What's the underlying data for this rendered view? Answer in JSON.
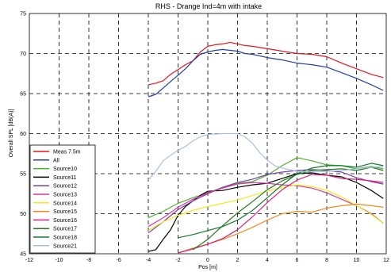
{
  "chart_data": {
    "type": "line",
    "title": "RHS - Drange Ind=4m with intake",
    "xlabel": "Pos [m]",
    "ylabel": "Overall SPL [dB(A)]",
    "xlim": [
      -12,
      12
    ],
    "ylim": [
      45,
      75
    ],
    "xticks": [
      -12,
      -10,
      -8,
      -6,
      -4,
      -2,
      0,
      2,
      4,
      6,
      8,
      10,
      12
    ],
    "yticks": [
      45,
      50,
      55,
      60,
      65,
      70,
      75
    ],
    "grid": "dashed",
    "legend_position": "bottom-left",
    "series": [
      {
        "name": "Meas 7.5m",
        "color": "#e8141c",
        "x": [
          -4,
          -3.5,
          -3,
          -2.5,
          -2,
          -1.5,
          -1,
          -0.5,
          0,
          0.5,
          1,
          1.5,
          2,
          2.5,
          3,
          4,
          5,
          6,
          7,
          8,
          9,
          10,
          11,
          11.8
        ],
        "y": [
          66.1,
          66.3,
          66.6,
          67.4,
          68.0,
          68.6,
          69.1,
          70.2,
          70.9,
          71.1,
          71.2,
          71.4,
          71.2,
          71.0,
          70.9,
          70.6,
          70.3,
          70.0,
          69.9,
          69.6,
          68.8,
          68.1,
          67.4,
          67.0
        ]
      },
      {
        "name": "All",
        "color": "#1f3fa6",
        "x": [
          -4,
          -3.5,
          -3,
          -2.5,
          -2,
          -1.5,
          -1,
          -0.5,
          0,
          0.5,
          1,
          1.5,
          2,
          2.5,
          3,
          4,
          5,
          6,
          7,
          8,
          9,
          10,
          11,
          11.8
        ],
        "y": [
          64.6,
          64.9,
          65.7,
          66.5,
          67.3,
          68.1,
          69.1,
          69.9,
          70.2,
          70.4,
          70.5,
          70.4,
          70.3,
          70.0,
          69.9,
          69.5,
          69.2,
          68.8,
          68.6,
          68.3,
          67.6,
          66.9,
          66.1,
          65.4
        ]
      },
      {
        "name": "Source10",
        "color": "#4caf32",
        "x": [
          -4,
          -3,
          -2,
          -1,
          0,
          1,
          2,
          3,
          4,
          5,
          6,
          7,
          8,
          9,
          10,
          11,
          11.8
        ],
        "y": [
          49.5,
          50.3,
          51.3,
          52.0,
          52.6,
          53.3,
          53.8,
          54.0,
          54.8,
          56.0,
          57.0,
          56.6,
          56.1,
          56.0,
          55.6,
          55.9,
          55.6
        ]
      },
      {
        "name": "Source11",
        "color": "#000000",
        "x": [
          -4,
          -3.5,
          -3,
          -2.5,
          -2,
          -1.5,
          -1,
          -0.5,
          0,
          1,
          2,
          3,
          4,
          5,
          6,
          7,
          8,
          9,
          10,
          11,
          11.8
        ],
        "y": [
          45.3,
          45.5,
          46.8,
          48.0,
          49.8,
          50.9,
          51.6,
          52.3,
          52.8,
          52.9,
          53.3,
          53.6,
          53.8,
          54.4,
          55.0,
          55.1,
          54.8,
          54.6,
          53.9,
          52.9,
          51.9
        ]
      },
      {
        "name": "Source12",
        "color": "#7a3fa8",
        "x": [
          -4,
          -3,
          -2,
          -1,
          0,
          1,
          2,
          3,
          4,
          5,
          6,
          7,
          8,
          9,
          10,
          11,
          11.8
        ],
        "y": [
          47.6,
          49.0,
          50.5,
          51.6,
          52.5,
          53.3,
          53.9,
          54.3,
          54.9,
          55.2,
          55.4,
          55.5,
          55.4,
          55.2,
          54.5,
          54.0,
          53.7
        ]
      },
      {
        "name": "Source13",
        "color": "#d53aa0",
        "x": [
          -4,
          -3,
          -2,
          -1,
          0,
          1,
          2,
          3,
          4,
          5,
          6,
          7,
          8,
          9,
          10,
          11,
          11.8
        ],
        "y": [
          48.4,
          49.5,
          50.8,
          51.8,
          52.6,
          53.2,
          53.7,
          53.9,
          53.8,
          53.6,
          53.5,
          53.2,
          52.6,
          51.8,
          51.0,
          50.0,
          48.8
        ]
      },
      {
        "name": "Source14",
        "color": "#f0ea1a",
        "x": [
          -4,
          -3,
          -2,
          -1,
          0,
          1,
          2,
          3,
          4,
          5,
          6,
          7,
          8,
          9,
          10,
          11,
          11.8
        ],
        "y": [
          47.9,
          49.0,
          49.8,
          50.4,
          50.9,
          51.3,
          51.7,
          52.3,
          52.8,
          53.3,
          53.6,
          53.4,
          52.9,
          52.1,
          51.0,
          49.9,
          48.8
        ]
      },
      {
        "name": "Source15",
        "color": "#f08a1e",
        "x": [
          -2,
          -1,
          0,
          1,
          2,
          3,
          4,
          5,
          6,
          7,
          8,
          9,
          10,
          11,
          11.8
        ],
        "y": [
          45.1,
          45.7,
          46.2,
          46.8,
          47.5,
          48.3,
          49.2,
          50.0,
          50.3,
          50.2,
          50.7,
          51.0,
          51.2,
          51.0,
          50.8
        ]
      },
      {
        "name": "Source16",
        "color": "#e0207c",
        "x": [
          -2,
          -1,
          0,
          1,
          2,
          3,
          4,
          5,
          6,
          7,
          8,
          9,
          10,
          11,
          11.8
        ],
        "y": [
          45.1,
          45.6,
          46.2,
          46.9,
          48.0,
          49.6,
          51.4,
          53.0,
          54.2,
          54.9,
          54.8,
          54.4,
          54.3,
          54.1,
          53.9
        ]
      },
      {
        "name": "Source17",
        "color": "#237a1d",
        "x": [
          -1,
          0,
          1,
          2,
          3,
          4,
          5,
          6,
          7,
          8,
          9,
          10,
          11,
          11.8
        ],
        "y": [
          45.5,
          46.8,
          48.5,
          50.1,
          51.5,
          53.0,
          54.1,
          54.9,
          55.4,
          55.5,
          55.6,
          55.4,
          55.8,
          55.4
        ]
      },
      {
        "name": "Source18",
        "color": "#137a28",
        "x": [
          -2,
          -1,
          0,
          1,
          2,
          3,
          4,
          5,
          6,
          7,
          8,
          9,
          10,
          11,
          11.8
        ],
        "y": [
          47.0,
          47.4,
          47.9,
          48.4,
          49.2,
          50.4,
          52.0,
          53.6,
          55.0,
          55.7,
          56.0,
          56.0,
          55.8,
          56.3,
          56.0
        ]
      },
      {
        "name": "Source21",
        "color": "#a9bfe3",
        "x": [
          -4,
          -3.5,
          -3,
          -2.5,
          -2,
          -1.5,
          -1,
          -0.5,
          0,
          1,
          2,
          2.5,
          3,
          3.5,
          4,
          4.5,
          5,
          6,
          7,
          8,
          9,
          10,
          11,
          11.8
        ],
        "y": [
          54.2,
          55.3,
          56.6,
          57.3,
          57.9,
          58.4,
          59.1,
          59.6,
          59.9,
          60.0,
          60.0,
          59.6,
          58.8,
          57.6,
          56.7,
          56.0,
          55.7,
          55.3,
          55.2,
          55.3,
          55.4,
          55.6,
          55.8,
          55.9
        ]
      }
    ]
  }
}
